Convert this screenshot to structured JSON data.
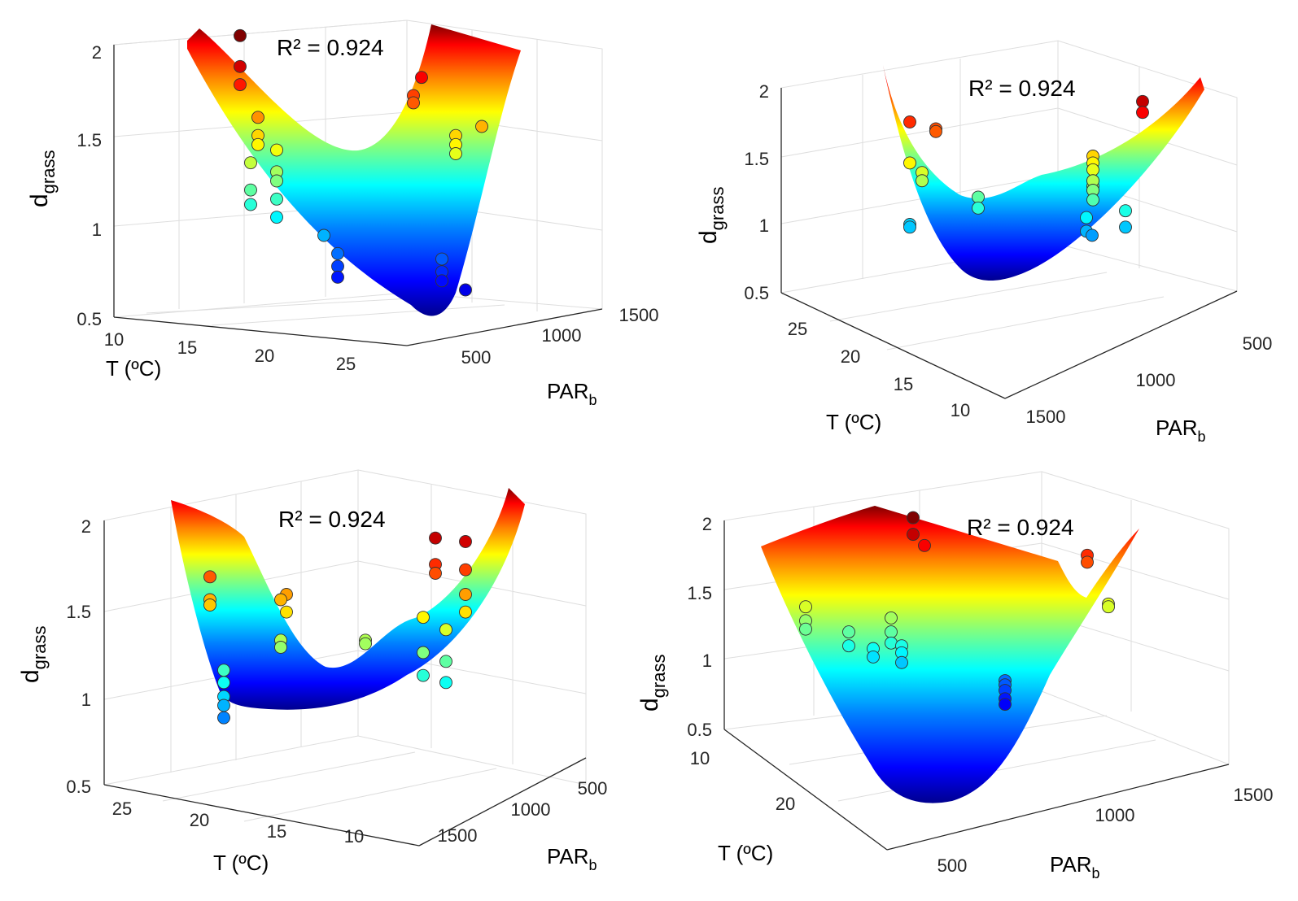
{
  "chart_data": [
    {
      "type": "surface3d",
      "annotation": "R² = 0.924",
      "zlabel": "d",
      "zlabel_sub": "grass",
      "xlabel": "T (ºC)",
      "ylabel": "PAR",
      "ylabel_sub": "b",
      "zlim": [
        0.5,
        2
      ],
      "z_ticks": [
        "2",
        "1.5",
        "1",
        "0.5"
      ],
      "t_ticks": [
        "10",
        "15",
        "20",
        "25"
      ],
      "par_ticks": [
        "500",
        "1000",
        "1500"
      ],
      "points_z": [
        2.05,
        1.88,
        1.78,
        1.6,
        1.5,
        1.45,
        1.42,
        1.35,
        1.3,
        1.25,
        1.2,
        1.15,
        1.12,
        1.05,
        0.95,
        0.85,
        0.78,
        0.72,
        1.72,
        1.68,
        1.82,
        1.5,
        1.45,
        1.4,
        1.55,
        0.82,
        0.75,
        0.7,
        0.65
      ]
    },
    {
      "type": "surface3d",
      "annotation": "R² = 0.924",
      "zlabel": "d",
      "zlabel_sub": "grass",
      "xlabel": "T (ºC)",
      "ylabel": "PAR",
      "ylabel_sub": "b",
      "zlim": [
        0.5,
        2
      ],
      "z_ticks": [
        "2",
        "1.5",
        "1",
        "0.5"
      ],
      "t_ticks": [
        "25",
        "20",
        "15",
        "10"
      ],
      "par_ticks": [
        "500",
        "1000",
        "1500"
      ],
      "points_z": [
        1.75,
        1.7,
        1.68,
        1.45,
        1.38,
        1.32,
        1.2,
        1.12,
        1.0,
        0.98,
        1.32,
        1.28,
        1.25,
        1.9,
        1.82,
        1.5,
        1.45,
        1.4,
        1.32,
        1.25,
        1.18,
        1.1,
        1.05,
        0.98,
        0.95,
        0.92
      ]
    },
    {
      "type": "surface3d",
      "annotation": "R² = 0.924",
      "zlabel": "d",
      "zlabel_sub": "grass",
      "xlabel": "T (ºC)",
      "ylabel": "PAR",
      "ylabel_sub": "b",
      "zlim": [
        0.5,
        2
      ],
      "z_ticks": [
        "2",
        "1.5",
        "1",
        "0.5"
      ],
      "t_ticks": [
        "25",
        "20",
        "15",
        "10"
      ],
      "par_ticks": [
        "500",
        "1000",
        "1500"
      ],
      "points_z": [
        1.68,
        1.55,
        1.52,
        1.58,
        1.55,
        1.48,
        1.32,
        1.28,
        1.15,
        1.08,
        1.0,
        0.95,
        0.88,
        1.32,
        1.3,
        1.9,
        1.75,
        1.7,
        1.88,
        1.72,
        1.58,
        1.48,
        1.45,
        1.38,
        1.25,
        1.2,
        1.12,
        1.08
      ]
    },
    {
      "type": "surface3d",
      "annotation": "R² = 0.924",
      "zlabel": "d",
      "zlabel_sub": "grass",
      "xlabel": "T (ºC)",
      "ylabel": "PAR",
      "ylabel_sub": "b",
      "zlim": [
        0.5,
        2
      ],
      "z_ticks": [
        "2",
        "1.5",
        "1",
        "0.5"
      ],
      "t_ticks": [
        "10",
        "20"
      ],
      "par_ticks": [
        "500",
        "1000",
        "1500"
      ],
      "points_z": [
        2.02,
        1.9,
        1.82,
        1.38,
        1.28,
        1.22,
        1.3,
        1.2,
        1.12,
        1.1,
        1.05,
        0.98,
        1.2,
        1.1,
        1.08,
        1.02,
        0.85,
        0.82,
        0.78,
        0.72,
        0.68,
        1.75,
        1.7,
        1.4,
        1.38
      ]
    }
  ],
  "colormap": [
    "#00008f",
    "#0000ff",
    "#0080ff",
    "#00ffff",
    "#80ff80",
    "#ffff00",
    "#ff8000",
    "#ff0000",
    "#800000"
  ]
}
